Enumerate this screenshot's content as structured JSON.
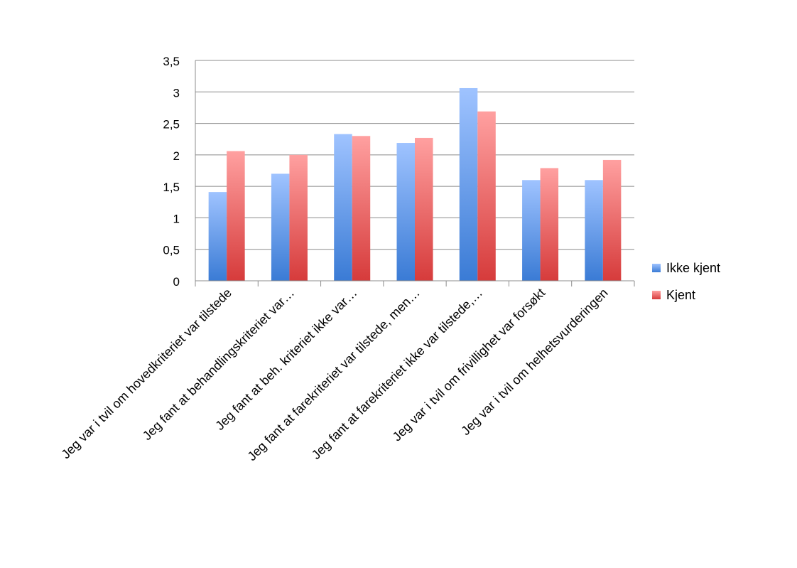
{
  "chart_data": {
    "type": "bar",
    "categories": [
      "Jeg var i tvil om hovedkriteriet var tilstede",
      "Jeg fant at behandlingskriteriet var…",
      "Jeg fant at beh. kriteriet ikke var…",
      "Jeg fant at farekriteriet var tilstede, men…",
      "Jeg fant at farekriteriet ikke var tilstede,…",
      "Jeg var i tvil om frivillighet var forsøkt",
      "Jeg var i tvil om helhetsvurderingen"
    ],
    "series": [
      {
        "name": "Ikke kjent",
        "values": [
          1.41,
          1.7,
          2.33,
          2.19,
          3.06,
          1.6,
          1.6
        ],
        "color_top": "#9fc3ff",
        "color_bottom": "#3a7bd5"
      },
      {
        "name": "Kjent",
        "values": [
          2.06,
          2.0,
          2.3,
          2.27,
          2.69,
          1.79,
          1.92
        ],
        "color_top": "#ffa0a0",
        "color_bottom": "#d63b3b"
      }
    ],
    "y_ticks": [
      "0",
      "0,5",
      "1",
      "1,5",
      "2",
      "2,5",
      "3",
      "3,5"
    ],
    "ylim": [
      0,
      3.5
    ],
    "grid": true,
    "legend_position": "right",
    "title": "",
    "xlabel": "",
    "ylabel": ""
  }
}
